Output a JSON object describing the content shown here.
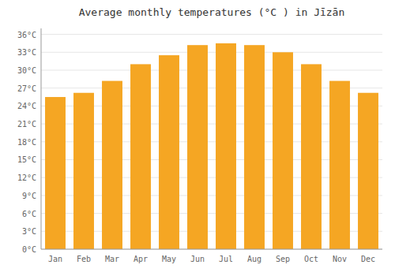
{
  "chart_data": {
    "type": "bar",
    "title": "Average monthly temperatures (°C ) in Jīzān",
    "categories": [
      "Jan",
      "Feb",
      "Mar",
      "Apr",
      "May",
      "Jun",
      "Jul",
      "Aug",
      "Sep",
      "Oct",
      "Nov",
      "Dec"
    ],
    "values": [
      25.5,
      26.2,
      28.2,
      31.0,
      32.5,
      34.2,
      34.5,
      34.2,
      33.0,
      31.0,
      28.2,
      26.2
    ],
    "ylim": [
      0,
      37
    ],
    "yticks": [
      {
        "value": 0,
        "label": "0°C"
      },
      {
        "value": 3,
        "label": "3°C"
      },
      {
        "value": 6,
        "label": "6°C"
      },
      {
        "value": 9,
        "label": "9°C"
      },
      {
        "value": 12,
        "label": "12°C"
      },
      {
        "value": 15,
        "label": "15°C"
      },
      {
        "value": 18,
        "label": "18°C"
      },
      {
        "value": 21,
        "label": "21°C"
      },
      {
        "value": 24,
        "label": "24°C"
      },
      {
        "value": 27,
        "label": "27°C"
      },
      {
        "value": 30,
        "label": "30°C"
      },
      {
        "value": 33,
        "label": "33°C"
      },
      {
        "value": 36,
        "label": "36°C"
      }
    ],
    "grid": true
  }
}
